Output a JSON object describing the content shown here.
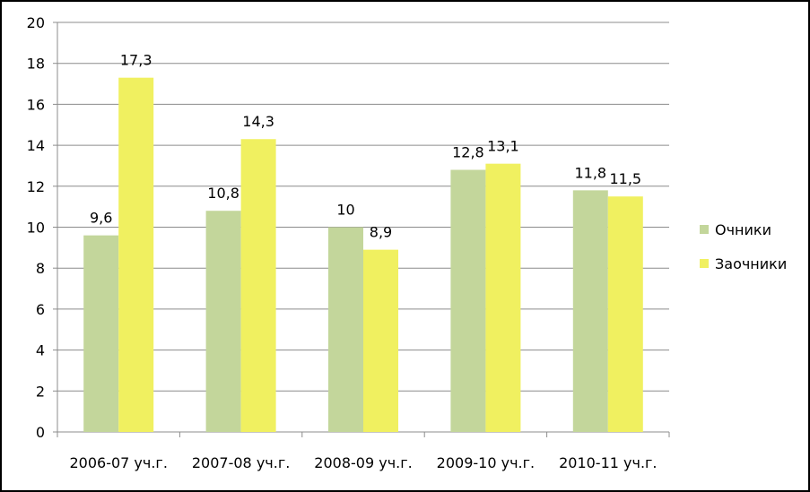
{
  "chart_data": {
    "type": "bar",
    "categories": [
      "2006-07 уч.г.",
      "2007-08 уч.г.",
      "2008-09 уч.г.",
      "2009-10 уч.г.",
      "2010-11 уч.г."
    ],
    "series": [
      {
        "name": "Очники",
        "values": [
          9.6,
          10.8,
          10,
          12.8,
          11.8
        ],
        "labels": [
          "9,6",
          "10,8",
          "10",
          "12,8",
          "11,8"
        ],
        "color": "#c3d69b"
      },
      {
        "name": "Заочники",
        "values": [
          17.3,
          14.3,
          8.9,
          13.1,
          11.5
        ],
        "labels": [
          "17,3",
          "14,3",
          "8,9",
          "13,1",
          "11,5"
        ],
        "color": "#f0f060"
      }
    ],
    "ylim": [
      0,
      20
    ],
    "yticks": [
      0,
      2,
      4,
      6,
      8,
      10,
      12,
      14,
      16,
      18,
      20
    ],
    "grid": true,
    "legend_position": "right",
    "title": "",
    "xlabel": "",
    "ylabel": ""
  }
}
